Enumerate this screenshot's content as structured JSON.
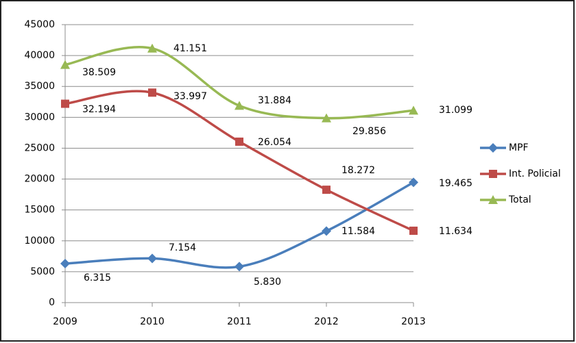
{
  "chart_data": {
    "type": "line",
    "categories": [
      "2009",
      "2010",
      "2011",
      "2012",
      "2013"
    ],
    "series": [
      {
        "name": "MPF",
        "color": "#4a7ebb",
        "marker": "diamond",
        "values": [
          6315,
          7154,
          5830,
          11584,
          19465
        ],
        "value_labels": [
          "6.315",
          "7.154",
          "5.830",
          "11.584",
          "19.465"
        ]
      },
      {
        "name": "Int. Policial",
        "color": "#be4b48",
        "marker": "square",
        "values": [
          32194,
          33997,
          26054,
          18272,
          11634
        ],
        "value_labels": [
          "32.194",
          "33.997",
          "26.054",
          "18.272",
          "11.634"
        ]
      },
      {
        "name": "Total",
        "color": "#98b954",
        "marker": "triangle",
        "values": [
          38509,
          41151,
          31884,
          29856,
          31099
        ],
        "value_labels": [
          "38.509",
          "41.151",
          "31.884",
          "29.856",
          "31.099"
        ]
      }
    ],
    "ylim": [
      0,
      45000
    ],
    "yticks": [
      0,
      5000,
      10000,
      15000,
      20000,
      25000,
      30000,
      35000,
      40000,
      45000
    ],
    "grid": true,
    "smooth": true,
    "legend": "right"
  }
}
